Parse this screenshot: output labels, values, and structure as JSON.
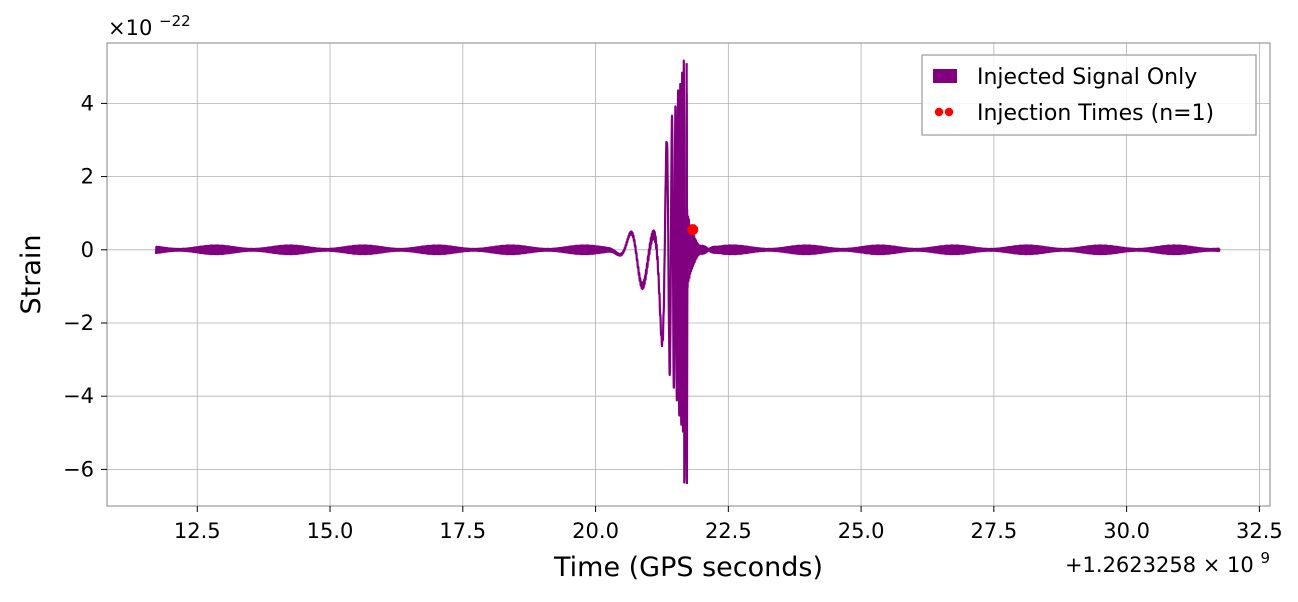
{
  "chart_data": {
    "type": "line",
    "title": "",
    "xlabel": "Time (GPS seconds)",
    "ylabel": "Strain",
    "x_offset_label": "+1.2623258 × 10",
    "x_offset_exp": "9",
    "y_scale_label": "×10",
    "y_scale_exp": "−22",
    "xlim": [
      10.8,
      32.7
    ],
    "ylim": [
      -7.0,
      5.65
    ],
    "x_ticks": [
      12.5,
      15.0,
      17.5,
      20.0,
      22.5,
      25.0,
      27.5,
      30.0,
      32.5
    ],
    "x_tick_labels": [
      "12.5",
      "15.0",
      "17.5",
      "20.0",
      "22.5",
      "25.0",
      "27.5",
      "30.0",
      "32.5"
    ],
    "y_ticks": [
      -6,
      -4,
      -2,
      0,
      2,
      4
    ],
    "y_tick_labels": [
      "−6",
      "−4",
      "−2",
      "0",
      "2",
      "4"
    ],
    "grid": true,
    "legend_position": "top-right",
    "series": [
      {
        "name": "Injected Signal Only",
        "kind": "line",
        "color": "#800080",
        "x_range": [
          11.72,
          31.75
        ],
        "merger_time": 21.72,
        "peak_strain_positive": 5.1,
        "peak_strain_negative": -6.4,
        "background_amplitude": 0.12
      },
      {
        "name": "Injection Times (n=1)",
        "kind": "scatter",
        "color": "#ff0000",
        "points": [
          {
            "x": 21.83,
            "y": 0.55
          }
        ]
      }
    ]
  }
}
